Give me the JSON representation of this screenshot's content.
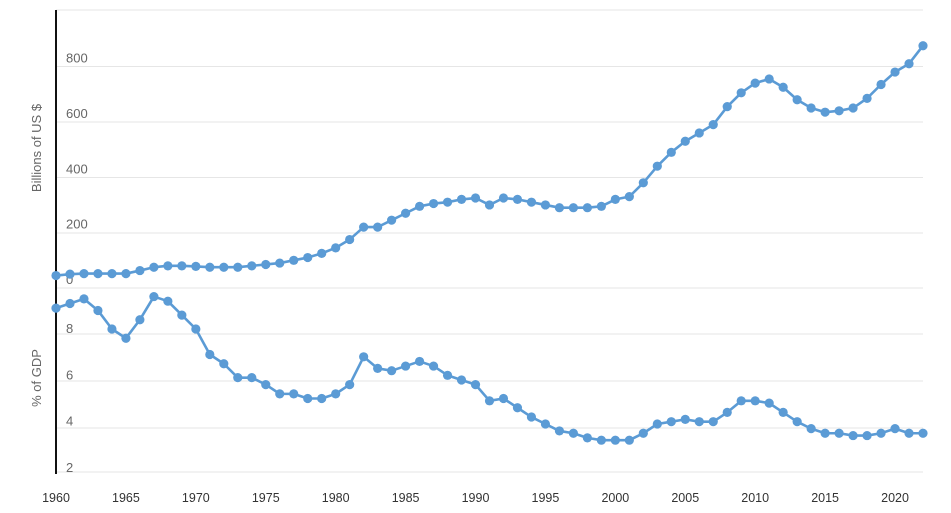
{
  "chart_data": [
    {
      "type": "line",
      "ylabel": "Billions of US $",
      "ylim": [
        -10,
        880
      ],
      "yticks": [
        0,
        200,
        400,
        600,
        800
      ],
      "xlim": [
        1960,
        2022
      ],
      "grid": true,
      "color": "#5b9bd5",
      "series": [
        {
          "x": [
            1960,
            1961,
            1962,
            1963,
            1964,
            1965,
            1966,
            1967,
            1968,
            1969,
            1970,
            1971,
            1972,
            1973,
            1974,
            1975,
            1976,
            1977,
            1978,
            1979,
            1980,
            1981,
            1982,
            1983,
            1984,
            1985,
            1986,
            1987,
            1988,
            1989,
            1990,
            1991,
            1992,
            1993,
            1994,
            1995,
            1996,
            1997,
            1998,
            1999,
            2000,
            2001,
            2002,
            2003,
            2004,
            2005,
            2006,
            2007,
            2008,
            2009,
            2010,
            2011,
            2012,
            2013,
            2014,
            2015,
            2016,
            2017,
            2018,
            2019,
            2020,
            2021,
            2022
          ],
          "values": [
            45,
            50,
            52,
            52,
            52,
            52,
            63,
            75,
            80,
            80,
            78,
            75,
            75,
            75,
            80,
            85,
            90,
            100,
            110,
            125,
            145,
            175,
            220,
            220,
            245,
            270,
            295,
            305,
            310,
            320,
            325,
            300,
            325,
            320,
            310,
            300,
            290,
            290,
            290,
            295,
            320,
            330,
            380,
            440,
            490,
            530,
            560,
            590,
            655,
            705,
            740,
            755,
            725,
            680,
            650,
            635,
            640,
            650,
            685,
            735,
            780,
            810,
            875
          ]
        }
      ]
    },
    {
      "type": "line",
      "ylabel": "% of GDP",
      "ylim": [
        2,
        10
      ],
      "yticks": [
        2,
        4,
        6,
        8
      ],
      "xlim": [
        1960,
        2022
      ],
      "xticks": [
        1960,
        1965,
        1970,
        1975,
        1980,
        1985,
        1990,
        1995,
        2000,
        2005,
        2010,
        2015,
        2020
      ],
      "grid": true,
      "color": "#5b9bd5",
      "series": [
        {
          "x": [
            1960,
            1961,
            1962,
            1963,
            1964,
            1965,
            1966,
            1967,
            1968,
            1969,
            1970,
            1971,
            1972,
            1973,
            1974,
            1975,
            1976,
            1977,
            1978,
            1979,
            1980,
            1981,
            1982,
            1983,
            1984,
            1985,
            1986,
            1987,
            1988,
            1989,
            1990,
            1991,
            1992,
            1993,
            1994,
            1995,
            1996,
            1997,
            1998,
            1999,
            2000,
            2001,
            2002,
            2003,
            2004,
            2005,
            2006,
            2007,
            2008,
            2009,
            2010,
            2011,
            2012,
            2013,
            2014,
            2015,
            2016,
            2017,
            2018,
            2019,
            2020,
            2021,
            2022
          ],
          "values": [
            8.9,
            9.1,
            9.3,
            8.8,
            8.0,
            7.6,
            8.4,
            9.4,
            9.2,
            8.6,
            8.0,
            6.9,
            6.5,
            5.9,
            5.9,
            5.6,
            5.2,
            5.2,
            5.0,
            5.0,
            5.2,
            5.6,
            6.8,
            6.3,
            6.2,
            6.4,
            6.6,
            6.4,
            6.0,
            5.8,
            5.6,
            4.9,
            5.0,
            4.6,
            4.2,
            3.9,
            3.6,
            3.5,
            3.3,
            3.2,
            3.2,
            3.2,
            3.5,
            3.9,
            4.0,
            4.1,
            4.0,
            4.0,
            4.4,
            4.9,
            4.9,
            4.8,
            4.4,
            4.0,
            3.7,
            3.5,
            3.5,
            3.4,
            3.4,
            3.5,
            3.7,
            3.5,
            3.5
          ]
        }
      ]
    }
  ]
}
